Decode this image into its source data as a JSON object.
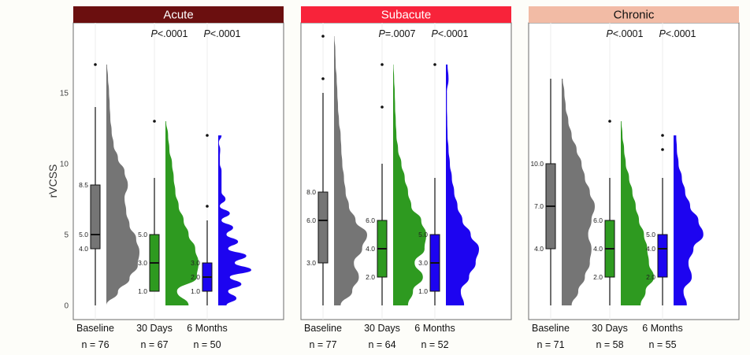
{
  "chart_data": {
    "type": "raincloud",
    "ylabel": "rVCSS",
    "yticks": [
      0,
      5,
      10,
      15
    ],
    "ylim": [
      0,
      19
    ],
    "colors": {
      "Baseline": "#757575",
      "30 Days": "#2e9a20",
      "6 Months": "#1d04f0"
    },
    "panels": [
      {
        "title": "Acute",
        "strip_color": "#6b0f0f",
        "strip_text_color": "#ffffff",
        "groups": [
          {
            "label": "Baseline",
            "n": "n = 76",
            "pval": "",
            "whisker_low": 0,
            "q1": 4,
            "median": 5,
            "q3": 8.5,
            "whisker_high": 14,
            "outliers": [
              17
            ],
            "labels": [
              {
                "v": 8.5,
                "t": "8.5"
              },
              {
                "v": 5,
                "t": "5.0"
              },
              {
                "v": 4,
                "t": "4.0"
              }
            ],
            "density_top": 17,
            "density": [
              0,
              0.35,
              0.7,
              0.95,
              1,
              0.9,
              0.7,
              0.6,
              0.55,
              0.65,
              0.55,
              0.35,
              0.22,
              0.16,
              0.12,
              0.1,
              0.08,
              0.05,
              0.02
            ]
          },
          {
            "label": "30 Days",
            "n": "n = 67",
            "pval": "P<.0001",
            "whisker_low": 1,
            "q1": 1,
            "median": 3,
            "q3": 5,
            "whisker_high": 9,
            "outliers": [
              13
            ],
            "labels": [
              {
                "v": 5,
                "t": "5.0"
              },
              {
                "v": 3,
                "t": "3.0"
              },
              {
                "v": 1,
                "t": "1.0"
              }
            ],
            "density_top": 13,
            "density": [
              0.7,
              0.35,
              0.95,
              1,
              0.9,
              0.7,
              0.55,
              0.4,
              0.3,
              0.25,
              0.2,
              0.12,
              0.08,
              0.02
            ]
          },
          {
            "label": "6 Months",
            "n": "n = 50",
            "pval": "P<.0001",
            "whisker_low": 0,
            "q1": 1,
            "median": 2,
            "q3": 3,
            "whisker_high": 6,
            "outliers": [
              7,
              12
            ],
            "labels": [
              {
                "v": 3,
                "t": "3.0"
              },
              {
                "v": 2,
                "t": "2.0"
              },
              {
                "v": 1,
                "t": "1.0"
              }
            ],
            "density_top": 12,
            "density": [
              0.25,
              0.55,
              0.3,
              0.7,
              0.35,
              1,
              0.5,
              0.85,
              0.3,
              0.6,
              0.25,
              0.45,
              0.1,
              0.35,
              0.05,
              0.22,
              0.1,
              0.1,
              0.1,
              0.1,
              0.05,
              0.05,
              0.06,
              0.02,
              0.1
            ]
          }
        ]
      },
      {
        "title": "Subacute",
        "strip_color": "#f8233a",
        "strip_text_color": "#ffffff",
        "groups": [
          {
            "label": "Baseline",
            "n": "n = 77",
            "pval": "",
            "whisker_low": 0,
            "q1": 3,
            "median": 6,
            "q3": 8,
            "whisker_high": 15,
            "outliers": [
              16,
              19
            ],
            "labels": [
              {
                "v": 8,
                "t": "8.0"
              },
              {
                "v": 6,
                "t": "6.0"
              },
              {
                "v": 3,
                "t": "3.0"
              }
            ],
            "density_top": 19,
            "density": [
              0.2,
              0.55,
              0.75,
              0.6,
              0.85,
              1,
              0.65,
              0.45,
              0.35,
              0.3,
              0.25,
              0.22,
              0.2,
              0.15,
              0.12,
              0.1,
              0.08,
              0.05,
              0.04,
              0.01
            ]
          },
          {
            "label": "30 Days",
            "n": "n = 64",
            "pval": "P=.0007",
            "whisker_low": 0,
            "q1": 2,
            "median": 4,
            "q3": 6,
            "whisker_high": 10,
            "outliers": [
              14,
              17
            ],
            "labels": [
              {
                "v": 6,
                "t": "6.0"
              },
              {
                "v": 4,
                "t": "4.0"
              },
              {
                "v": 2,
                "t": "2.0"
              }
            ],
            "density_top": 17,
            "density": [
              0.45,
              0.6,
              0.9,
              0.65,
              0.95,
              1,
              0.85,
              0.55,
              0.45,
              0.35,
              0.25,
              0.15,
              0.1,
              0.08,
              0.06,
              0.05,
              0.03,
              0.01
            ]
          },
          {
            "label": "6 Months",
            "n": "n = 52",
            "pval": "P<.0001",
            "whisker_low": 0,
            "q1": 1,
            "median": 3,
            "q3": 5,
            "whisker_high": 9,
            "outliers": [
              17
            ],
            "labels": [
              {
                "v": 5,
                "t": "5.0"
              },
              {
                "v": 3,
                "t": "3.0"
              },
              {
                "v": 1,
                "t": "1.0"
              }
            ],
            "density_top": 17,
            "density": [
              0.55,
              0.45,
              0.7,
              0.9,
              1,
              0.75,
              0.5,
              0.35,
              0.25,
              0.18,
              0.12,
              0.08,
              0.05,
              0.04,
              0.03,
              0.03,
              0.08,
              0.05
            ]
          }
        ]
      },
      {
        "title": "Chronic",
        "strip_color": "#f2bba5",
        "strip_text_color": "#111111",
        "groups": [
          {
            "label": "Baseline",
            "n": "n = 71",
            "pval": "",
            "whisker_low": 0,
            "q1": 4,
            "median": 7,
            "q3": 10,
            "whisker_high": 16,
            "outliers": [],
            "labels": [
              {
                "v": 10,
                "t": "10.0"
              },
              {
                "v": 7,
                "t": "7.0"
              },
              {
                "v": 4,
                "t": "4.0"
              }
            ],
            "density_top": 16,
            "density": [
              0.3,
              0.5,
              0.7,
              0.85,
              0.9,
              0.8,
              0.9,
              1,
              0.85,
              0.7,
              0.6,
              0.45,
              0.3,
              0.2,
              0.12,
              0.08,
              0.03
            ]
          },
          {
            "label": "30 Days",
            "n": "n = 58",
            "pval": "P<.0001",
            "whisker_low": 0,
            "q1": 2,
            "median": 4,
            "q3": 6,
            "whisker_high": 9,
            "outliers": [
              13
            ],
            "labels": [
              {
                "v": 6,
                "t": "6.0"
              },
              {
                "v": 4,
                "t": "4.0"
              },
              {
                "v": 2,
                "t": "2.0"
              }
            ],
            "density_top": 13,
            "density": [
              0.6,
              0.75,
              1,
              0.85,
              0.8,
              0.7,
              0.55,
              0.45,
              0.35,
              0.25,
              0.15,
              0.1,
              0.05,
              0.02
            ]
          },
          {
            "label": "6 Months",
            "n": "n = 55",
            "pval": "P<.0001",
            "whisker_low": 0,
            "q1": 2,
            "median": 4,
            "q3": 5,
            "whisker_high": 9,
            "outliers": [
              11,
              12
            ],
            "labels": [
              {
                "v": 5,
                "t": "5.0"
              },
              {
                "v": 4,
                "t": "4.0"
              },
              {
                "v": 2,
                "t": "2.0"
              }
            ],
            "density_top": 12,
            "density": [
              0.4,
              0.3,
              0.55,
              0.45,
              0.6,
              0.9,
              0.75,
              0.5,
              0.35,
              0.25,
              0.15,
              0.1,
              0.08
            ]
          }
        ]
      }
    ]
  }
}
